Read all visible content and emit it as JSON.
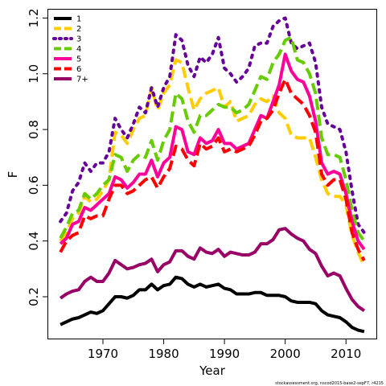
{
  "chart_data": {
    "type": "line",
    "xlabel": "Year",
    "ylabel": "F",
    "xlim": [
      1961,
      2015
    ],
    "ylim": [
      0.05,
      1.23
    ],
    "xticks": [
      1970,
      1980,
      1990,
      2000,
      2010
    ],
    "yticks": [
      0.2,
      0.4,
      0.6,
      0.8,
      1.0,
      1.2
    ],
    "xtick_labels": [
      "1970",
      "1980",
      "1990",
      "2000",
      "2010"
    ],
    "ytick_labels": [
      "0.2",
      "0.4",
      "0.6",
      "0.8",
      "1.0",
      "1.2"
    ],
    "legend_position": "top-left",
    "grid": false,
    "x": [
      1963,
      1964,
      1965,
      1966,
      1967,
      1968,
      1969,
      1970,
      1971,
      1972,
      1973,
      1974,
      1975,
      1976,
      1977,
      1978,
      1979,
      1980,
      1981,
      1982,
      1983,
      1984,
      1985,
      1986,
      1987,
      1988,
      1989,
      1990,
      1991,
      1992,
      1993,
      1994,
      1995,
      1996,
      1997,
      1998,
      1999,
      2000,
      2001,
      2002,
      2003,
      2004,
      2005,
      2006,
      2007,
      2008,
      2009,
      2010,
      2011,
      2012,
      2013
    ],
    "series": [
      {
        "name": "1",
        "color": "#000000",
        "dash": "solid",
        "values": [
          0.1,
          0.11,
          0.12,
          0.125,
          0.135,
          0.145,
          0.14,
          0.15,
          0.175,
          0.2,
          0.2,
          0.195,
          0.205,
          0.225,
          0.225,
          0.245,
          0.225,
          0.24,
          0.245,
          0.27,
          0.265,
          0.245,
          0.235,
          0.245,
          0.235,
          0.24,
          0.245,
          0.23,
          0.225,
          0.21,
          0.21,
          0.21,
          0.215,
          0.215,
          0.205,
          0.205,
          0.205,
          0.2,
          0.185,
          0.18,
          0.18,
          0.18,
          0.175,
          0.15,
          0.135,
          0.13,
          0.125,
          0.11,
          0.09,
          0.08,
          0.075
        ]
      },
      {
        "name": "2",
        "color": "#ffcc00",
        "dash": "dashed",
        "values": [
          0.4,
          0.43,
          0.48,
          0.5,
          0.56,
          0.54,
          0.55,
          0.58,
          0.62,
          0.79,
          0.78,
          0.75,
          0.8,
          0.84,
          0.85,
          0.95,
          0.87,
          0.93,
          0.96,
          1.05,
          1.04,
          0.95,
          0.87,
          0.91,
          0.93,
          0.94,
          0.95,
          0.88,
          0.9,
          0.83,
          0.84,
          0.85,
          0.89,
          0.91,
          0.9,
          0.92,
          0.86,
          0.84,
          0.78,
          0.77,
          0.77,
          0.77,
          0.7,
          0.62,
          0.57,
          0.56,
          0.56,
          0.53,
          0.42,
          0.36,
          0.31
        ]
      },
      {
        "name": "3",
        "color": "#660099",
        "dash": "dotted",
        "values": [
          0.47,
          0.5,
          0.58,
          0.61,
          0.68,
          0.65,
          0.68,
          0.68,
          0.72,
          0.84,
          0.8,
          0.77,
          0.82,
          0.88,
          0.86,
          0.95,
          0.88,
          0.95,
          0.99,
          1.14,
          1.12,
          1.03,
          0.99,
          1.06,
          1.04,
          1.07,
          1.13,
          1.02,
          1.0,
          0.97,
          0.99,
          1.02,
          1.1,
          1.11,
          1.11,
          1.17,
          1.19,
          1.2,
          1.11,
          1.09,
          1.1,
          1.11,
          1.04,
          0.88,
          0.82,
          0.81,
          0.8,
          0.72,
          0.58,
          0.46,
          0.43
        ]
      },
      {
        "name": "4",
        "color": "#66cc00",
        "dash": "dashed",
        "values": [
          0.41,
          0.45,
          0.5,
          0.51,
          0.57,
          0.55,
          0.57,
          0.6,
          0.62,
          0.71,
          0.7,
          0.65,
          0.69,
          0.71,
          0.7,
          0.76,
          0.69,
          0.76,
          0.8,
          0.93,
          0.91,
          0.83,
          0.79,
          0.85,
          0.85,
          0.87,
          0.89,
          0.88,
          0.88,
          0.86,
          0.87,
          0.89,
          0.94,
          0.99,
          0.98,
          1.04,
          1.07,
          1.12,
          1.13,
          1.05,
          1.04,
          1.0,
          0.93,
          0.77,
          0.71,
          0.71,
          0.7,
          0.62,
          0.51,
          0.43,
          0.4
        ]
      },
      {
        "name": "5",
        "color": "#ff0099",
        "dash": "solid",
        "values": [
          0.39,
          0.41,
          0.46,
          0.47,
          0.52,
          0.51,
          0.53,
          0.55,
          0.57,
          0.63,
          0.62,
          0.59,
          0.61,
          0.64,
          0.64,
          0.69,
          0.63,
          0.68,
          0.7,
          0.81,
          0.8,
          0.72,
          0.71,
          0.77,
          0.75,
          0.76,
          0.8,
          0.75,
          0.75,
          0.73,
          0.74,
          0.75,
          0.8,
          0.85,
          0.84,
          0.9,
          0.96,
          1.07,
          1.01,
          0.98,
          0.97,
          0.92,
          0.83,
          0.68,
          0.64,
          0.65,
          0.64,
          0.57,
          0.47,
          0.4,
          0.37
        ]
      },
      {
        "name": "6",
        "color": "#ff0000",
        "dash": "dashed",
        "values": [
          0.36,
          0.4,
          0.42,
          0.43,
          0.49,
          0.48,
          0.49,
          0.49,
          0.55,
          0.6,
          0.6,
          0.57,
          0.58,
          0.6,
          0.62,
          0.63,
          0.59,
          0.63,
          0.66,
          0.74,
          0.73,
          0.69,
          0.67,
          0.75,
          0.73,
          0.74,
          0.77,
          0.72,
          0.73,
          0.72,
          0.73,
          0.74,
          0.78,
          0.83,
          0.84,
          0.87,
          0.93,
          0.98,
          0.93,
          0.91,
          0.89,
          0.85,
          0.79,
          0.64,
          0.6,
          0.62,
          0.62,
          0.55,
          0.43,
          0.37,
          0.33
        ]
      },
      {
        "name": "7+",
        "color": "#990066",
        "dash": "solid",
        "values": [
          0.195,
          0.21,
          0.22,
          0.225,
          0.255,
          0.27,
          0.255,
          0.255,
          0.285,
          0.33,
          0.315,
          0.3,
          0.305,
          0.315,
          0.32,
          0.335,
          0.29,
          0.315,
          0.325,
          0.365,
          0.365,
          0.345,
          0.335,
          0.375,
          0.36,
          0.355,
          0.37,
          0.345,
          0.36,
          0.355,
          0.35,
          0.35,
          0.36,
          0.39,
          0.39,
          0.405,
          0.44,
          0.445,
          0.425,
          0.41,
          0.4,
          0.37,
          0.355,
          0.31,
          0.275,
          0.285,
          0.275,
          0.23,
          0.19,
          0.165,
          0.15
        ]
      }
    ]
  },
  "credit": "stockassessment.org, nscod2015-base2-sepF7, r4215"
}
